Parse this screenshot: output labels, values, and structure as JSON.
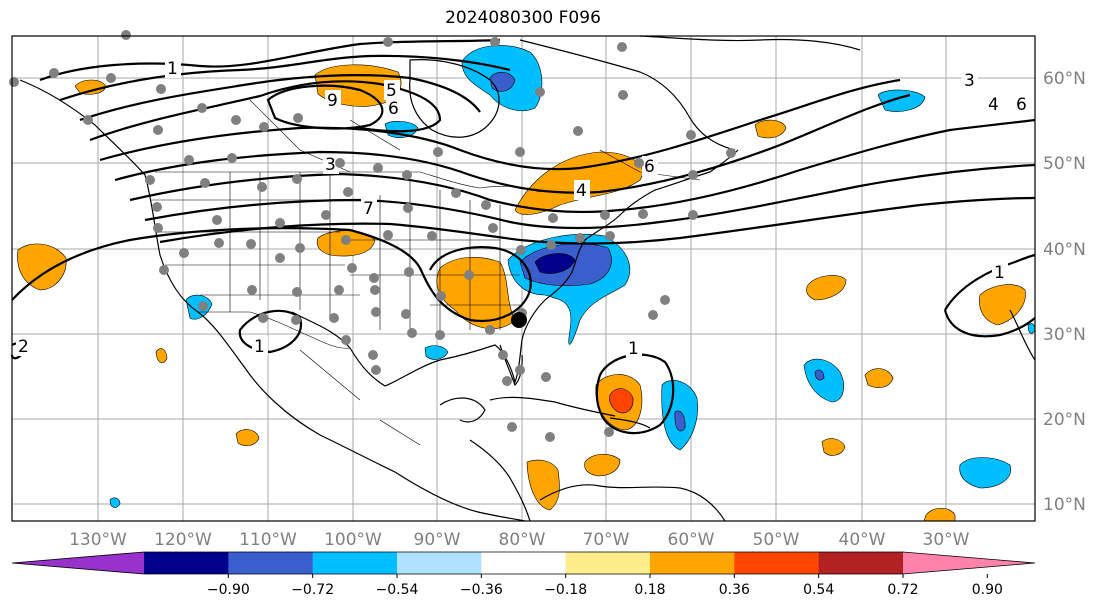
{
  "title": "2024080300 F096",
  "lon_labels": [
    "130°W",
    "120°W",
    "110°W",
    "100°W",
    "90°W",
    "80°W",
    "70°W",
    "60°W",
    "50°W",
    "40°W",
    "30°W"
  ],
  "lat_labels": [
    "60°N",
    "50°N",
    "40°N",
    "30°N",
    "20°N",
    "10°N"
  ],
  "contour_labels": [
    "1",
    "9",
    "5",
    "6",
    "3",
    "7",
    "4",
    "6",
    "3",
    "4",
    "6",
    "1",
    "1",
    "2",
    "1"
  ],
  "colorbar": {
    "ticks": [
      "−0.90",
      "−0.72",
      "−0.54",
      "−0.36",
      "−0.18",
      "0.18",
      "0.36",
      "0.54",
      "0.72",
      "0.90"
    ],
    "colors": [
      "#9932cc",
      "#00008b",
      "#3a5fcd",
      "#00bfff",
      "#b0e2ff",
      "#ffffff",
      "#ffec8b",
      "#ffa500",
      "#ff4500",
      "#b22222",
      "#ff82ab"
    ]
  }
}
